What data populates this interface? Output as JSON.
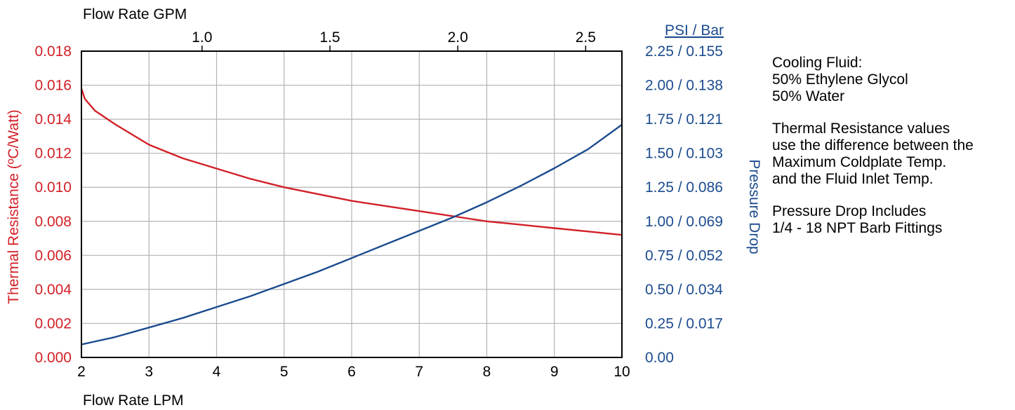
{
  "chart_data": {
    "type": "line",
    "x_bottom": {
      "label": "Flow Rate LPM",
      "range": [
        2,
        10
      ],
      "ticks": [
        2,
        3,
        4,
        5,
        6,
        7,
        8,
        9,
        10
      ]
    },
    "x_top": {
      "label": "Flow Rate GPM",
      "ticks": [
        1.0,
        1.5,
        2.0,
        2.5
      ],
      "tick_labels": [
        "1.0",
        "1.5",
        "2.0",
        "2.5"
      ]
    },
    "y_left": {
      "label": "Thermal Resistance (ºC/Watt)",
      "range": [
        0,
        0.018
      ],
      "ticks": [
        0,
        0.002,
        0.004,
        0.006,
        0.008,
        0.01,
        0.012,
        0.014,
        0.016,
        0.018
      ],
      "tick_labels": [
        "0.000",
        "0.002",
        "0.004",
        "0.006",
        "0.008",
        "0.010",
        "0.012",
        "0.014",
        "0.016",
        "0.018"
      ],
      "color": "#d22027"
    },
    "y_right": {
      "label": "Pressure Drop",
      "unit_header": "PSI / Bar",
      "range": [
        0,
        2.25
      ],
      "ticks": [
        0,
        0.25,
        0.5,
        0.75,
        1.0,
        1.25,
        1.5,
        1.75,
        2.0,
        2.25
      ],
      "tick_labels": [
        "0.00",
        "0.25 / 0.017",
        "0.50 / 0.034",
        "0.75 / 0.052",
        "1.00 / 0.069",
        "1.25 / 0.086",
        "1.50 / 0.103",
        "1.75 / 0.121",
        "2.00 / 0.138",
        "2.25 / 0.155"
      ],
      "color": "#1b4b8f"
    },
    "series": [
      {
        "axis": "left",
        "color": "#d22027",
        "x": [
          2,
          2.05,
          2.2,
          2.5,
          3,
          3.5,
          4,
          4.5,
          5,
          5.5,
          6,
          6.5,
          7,
          7.5,
          8,
          8.5,
          9,
          9.5,
          10
        ],
        "y": [
          0.0158,
          0.0152,
          0.0145,
          0.0137,
          0.0125,
          0.0117,
          0.0111,
          0.0105,
          0.01,
          0.0096,
          0.0092,
          0.0089,
          0.0086,
          0.0083,
          0.008,
          0.0078,
          0.0076,
          0.0074,
          0.0072
        ]
      },
      {
        "axis": "right",
        "color": "#1b4b8f",
        "x": [
          2,
          2.5,
          3,
          3.5,
          4,
          4.5,
          5,
          5.5,
          6,
          6.5,
          7,
          7.5,
          8,
          8.5,
          9,
          9.5,
          10
        ],
        "y": [
          0.095,
          0.15,
          0.22,
          0.29,
          0.37,
          0.45,
          0.54,
          0.63,
          0.73,
          0.83,
          0.93,
          1.03,
          1.14,
          1.26,
          1.39,
          1.53,
          1.71
        ]
      }
    ],
    "grid": true
  },
  "notes": {
    "fluid": [
      "Cooling Fluid:",
      "50% Ethylene Glycol",
      "50% Water"
    ],
    "thermal": [
      "Thermal Resistance values",
      "use the difference between the",
      "Maximum Coldplate Temp.",
      "and the Fluid Inlet Temp."
    ],
    "pressure": [
      "Pressure Drop Includes",
      "1/4 - 18 NPT Barb Fittings"
    ]
  }
}
